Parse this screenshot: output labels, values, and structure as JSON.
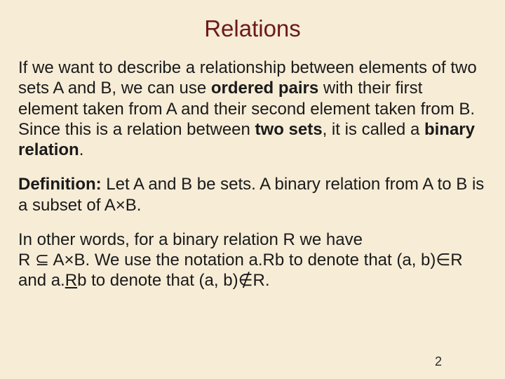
{
  "background_color": "#f7ecd6",
  "title": {
    "text": "Relations",
    "color": "#6b1a1a",
    "fontsize": 33
  },
  "body_fontsize": 24,
  "body_color": "#1a1a1a",
  "para1": {
    "t1": "If we want to describe a relationship between elements of two sets A and B, we can use ",
    "b1": "ordered pairs",
    "t2": " with their first element taken from A and  their second element taken from B.",
    "t3": "Since this is a relation between ",
    "b2": "two sets",
    "t4": ", it is called a ",
    "b3": "binary relation",
    "t5": "."
  },
  "para2": {
    "b1": "Definition:",
    "t1": " Let A and B be sets. A binary relation from A to B is a subset of A",
    "sym1": "×",
    "t2": "B."
  },
  "para3": {
    "t1": "In other words, for a binary relation R we have",
    "t2": "R ",
    "sym1": "⊆",
    "t3": " A",
    "sym2": "×",
    "t4": "B. We use the notation a.Rb to denote that (a, b)",
    "sym3": "∈",
    "t5": "R and a.",
    "u1": "R",
    "t6": "b to denote that (a, b)",
    "sym4": "∉",
    "t7": "R."
  },
  "page_number": "2"
}
